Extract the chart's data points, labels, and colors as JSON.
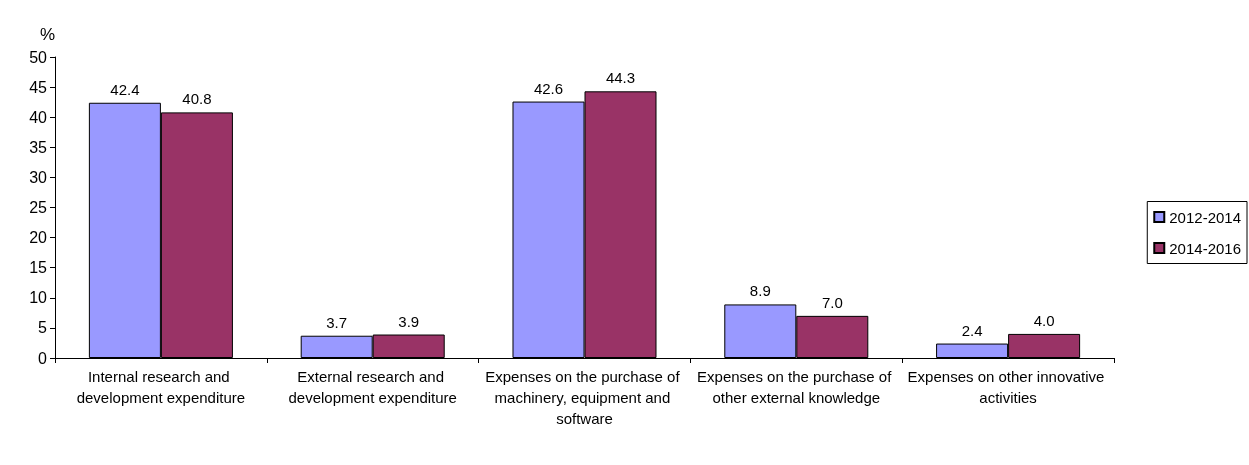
{
  "chart_data": {
    "type": "bar",
    "ylabel": "%",
    "categories": [
      "Internal research and development expenditure",
      "External research and development expenditure",
      "Expenses on the purchase of machinery, equipment and software",
      "Expenses on the purchase of other external knowledge",
      "Expenses on other innovative activities"
    ],
    "series": [
      {
        "name": "2012-2014",
        "color": "#9999ff",
        "values": [
          42.4,
          3.7,
          42.6,
          8.9,
          2.4
        ],
        "value_labels": [
          "42.4",
          "3.7",
          "42.6",
          "8.9",
          "2.4"
        ]
      },
      {
        "name": "2014-2016",
        "color": "#993366",
        "values": [
          40.8,
          3.9,
          44.3,
          7.0,
          4.0
        ],
        "value_labels": [
          "40.8",
          "3.9",
          "44.3",
          "7.0",
          "4.0"
        ]
      }
    ],
    "ylim": [
      0,
      50
    ],
    "yticks": [
      0,
      5,
      10,
      15,
      20,
      25,
      30,
      35,
      40,
      45,
      50
    ],
    "grid": false,
    "legend": "right"
  }
}
